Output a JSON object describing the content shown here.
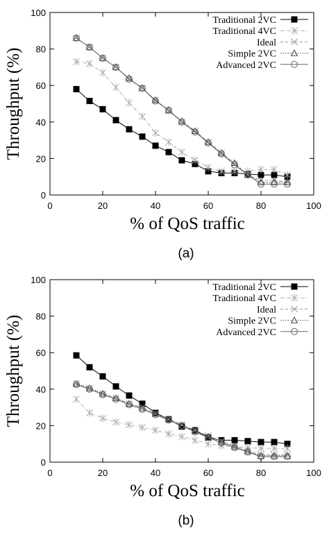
{
  "chart_data": [
    {
      "type": "line",
      "caption": "(a)",
      "xlabel": "% of QoS traffic",
      "ylabel": "Throughput (%)",
      "xlim": [
        0,
        100
      ],
      "ylim": [
        0,
        100
      ],
      "xticks": [
        0,
        20,
        40,
        60,
        80,
        100
      ],
      "yticks": [
        0,
        20,
        40,
        60,
        80,
        100
      ],
      "legend_position": "top-right",
      "x": [
        10,
        15,
        20,
        25,
        30,
        35,
        40,
        45,
        50,
        55,
        60,
        65,
        70,
        75,
        80,
        85,
        90
      ],
      "series": [
        {
          "name": "Traditional 2VC",
          "marker": "filled-square",
          "color": "#000000",
          "values": [
            58,
            51.5,
            47,
            41,
            36,
            32,
            27,
            23.5,
            19,
            17,
            13,
            12,
            12,
            11.5,
            11,
            11,
            10
          ]
        },
        {
          "name": "Traditional 4VC",
          "marker": "star",
          "color": "#aaaaaa",
          "values": [
            73,
            72,
            67,
            59,
            50.5,
            43,
            34,
            29,
            23.5,
            19,
            15,
            13,
            13,
            13,
            14,
            14,
            11
          ]
        },
        {
          "name": "Ideal",
          "marker": "cross",
          "color": "#999999",
          "values": [
            86,
            81,
            75,
            70,
            63.5,
            58.5,
            52,
            46,
            40,
            35,
            29,
            23,
            17,
            11,
            8,
            8,
            7
          ]
        },
        {
          "name": "Simple 2VC",
          "marker": "triangle",
          "color": "#444444",
          "values": [
            86,
            81,
            75,
            70,
            64,
            58.5,
            52,
            46.5,
            40.5,
            35,
            29,
            23,
            17.5,
            11,
            7,
            7,
            7
          ]
        },
        {
          "name": "Advanced 2VC",
          "marker": "circle",
          "color": "#666666",
          "values": [
            86,
            81,
            75,
            70,
            63.5,
            58.5,
            51.5,
            46.5,
            40,
            34.5,
            28.5,
            22.5,
            16.5,
            11,
            6,
            6,
            6
          ]
        }
      ]
    },
    {
      "type": "line",
      "caption": "(b)",
      "xlabel": "% of QoS traffic",
      "ylabel": "Throughput (%)",
      "xlim": [
        0,
        100
      ],
      "ylim": [
        0,
        100
      ],
      "xticks": [
        0,
        20,
        40,
        60,
        80,
        100
      ],
      "yticks": [
        0,
        20,
        40,
        60,
        80,
        100
      ],
      "legend_position": "top-right",
      "x": [
        10,
        15,
        20,
        25,
        30,
        35,
        40,
        45,
        50,
        55,
        60,
        65,
        70,
        75,
        80,
        85,
        90
      ],
      "series": [
        {
          "name": "Traditional 2VC",
          "marker": "filled-square",
          "color": "#000000",
          "values": [
            58.5,
            52,
            47,
            41.5,
            36.5,
            32,
            27,
            23.5,
            19.5,
            17.5,
            13.5,
            12,
            12,
            11.5,
            11,
            11,
            10
          ]
        },
        {
          "name": "Traditional 4VC",
          "marker": "star",
          "color": "#aaaaaa",
          "values": [
            34.5,
            27,
            24,
            22,
            20.5,
            19,
            17.5,
            15.5,
            14,
            12,
            10,
            9,
            8.5,
            8,
            7.5,
            7.5,
            7.5
          ]
        },
        {
          "name": "Ideal",
          "marker": "cross",
          "color": "#999999",
          "values": [
            43,
            40.5,
            37.5,
            35,
            32,
            30,
            26.5,
            23.5,
            20.5,
            17.5,
            14.5,
            11.5,
            9,
            6,
            4,
            4,
            4
          ]
        },
        {
          "name": "Simple 2VC",
          "marker": "triangle",
          "color": "#444444",
          "values": [
            43,
            40.5,
            37.5,
            35,
            32,
            29.5,
            26.5,
            23.5,
            20,
            17,
            14,
            11,
            8.5,
            6,
            3.5,
            3.5,
            3.5
          ]
        },
        {
          "name": "Advanced 2VC",
          "marker": "circle",
          "color": "#666666",
          "values": [
            42.5,
            40,
            37,
            34.5,
            31.5,
            29,
            26,
            23,
            20,
            16.5,
            13.5,
            10.5,
            8,
            5.5,
            3,
            3,
            3
          ]
        }
      ]
    }
  ]
}
